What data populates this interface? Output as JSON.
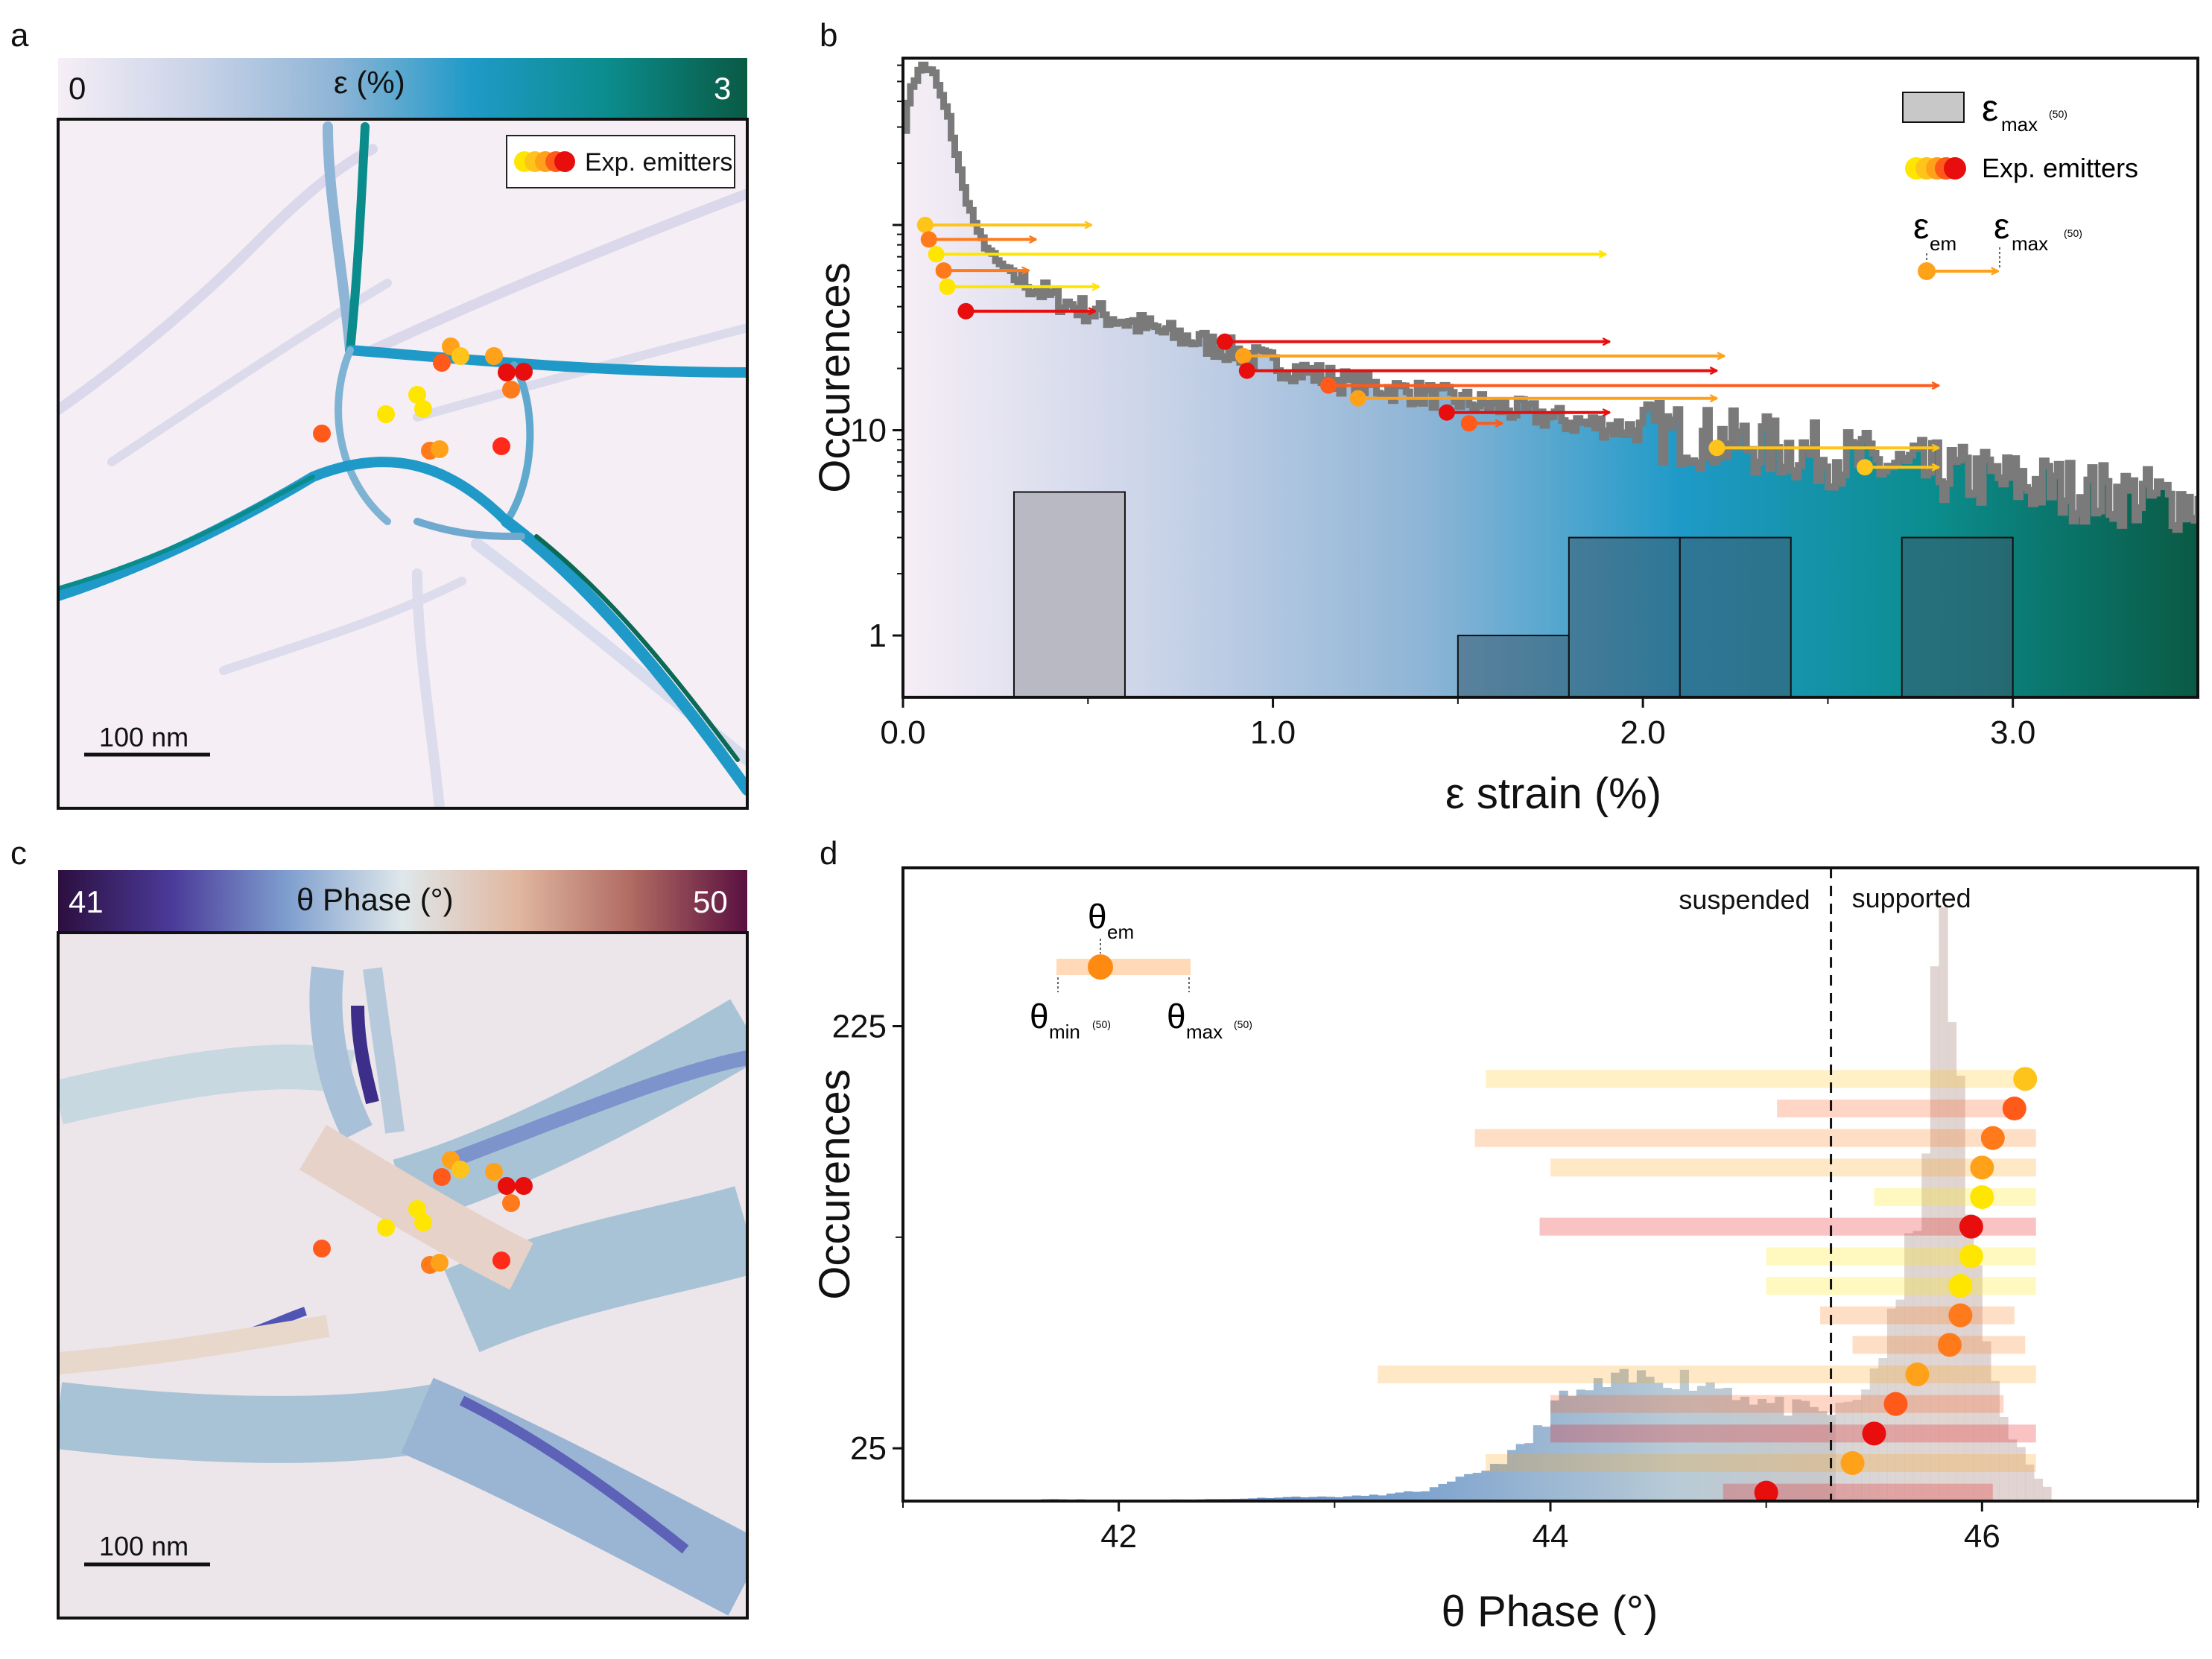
{
  "panels": {
    "a": {
      "label": "a",
      "colorbar": {
        "min": "0",
        "max": "3",
        "title": "ε  (%)",
        "colors": [
          "#f6eef6",
          "#c9d3e8",
          "#8fb5d6",
          "#1f9ac8",
          "#0b8c8c",
          "#0a5a44"
        ]
      },
      "legend": "Exp. emitters",
      "scalebar": "100 nm"
    },
    "c": {
      "label": "c",
      "colorbar": {
        "min": "41",
        "max": "50",
        "title": "θ Phase (°)",
        "colors": [
          "#2c0f3f",
          "#4b3b9a",
          "#7f9fcf",
          "#dfe7ea",
          "#e0b7a0",
          "#b06a62",
          "#5a1040"
        ]
      },
      "scalebar": "100 nm"
    }
  },
  "emitter_colors": [
    "#ffe600",
    "#ffc41a",
    "#ffa21a",
    "#ff7a1a",
    "#ff5a1a",
    "#ff2a1a",
    "#e80e0e"
  ],
  "chart_data": [
    {
      "panel": "b",
      "label": "b",
      "type": "bar",
      "title": "",
      "xlabel": "ε strain (%)",
      "ylabel": "Occurences",
      "xlim": [
        0,
        3.5
      ],
      "yscale": "log",
      "ylim": [
        0.5,
        650
      ],
      "xticks": [
        "0.0",
        "1.0",
        "2.0",
        "3.0"
      ],
      "xtick_values": [
        0,
        1,
        2,
        3
      ],
      "yticks": [
        "1",
        "10"
      ],
      "ytick_values": [
        1,
        10
      ],
      "legend": {
        "hist": "ε",
        "hist_sub": "max",
        "hist_sup": "(50)",
        "emitters": "Exp. emitters",
        "arrow_start": "ε",
        "arrow_start_sub": "em",
        "arrow_end": "ε",
        "arrow_end_sub": "max",
        "arrow_end_sup": "(50)"
      },
      "hist_bars": [
        {
          "x0": 0.3,
          "x1": 0.6,
          "count": 5
        },
        {
          "x0": 1.5,
          "x1": 1.8,
          "count": 1
        },
        {
          "x0": 1.8,
          "x1": 2.1,
          "count": 3
        },
        {
          "x0": 2.1,
          "x1": 2.4,
          "count": 3
        },
        {
          "x0": 2.7,
          "x1": 3.0,
          "count": 3
        }
      ],
      "distribution": [
        [
          0.0,
          300
        ],
        [
          0.02,
          480
        ],
        [
          0.05,
          600
        ],
        [
          0.08,
          540
        ],
        [
          0.12,
          330
        ],
        [
          0.16,
          150
        ],
        [
          0.2,
          90
        ],
        [
          0.25,
          66
        ],
        [
          0.3,
          56
        ],
        [
          0.4,
          44
        ],
        [
          0.5,
          38
        ],
        [
          0.6,
          34
        ],
        [
          0.7,
          30
        ],
        [
          0.8,
          27
        ],
        [
          0.9,
          24
        ],
        [
          1.0,
          21
        ],
        [
          1.1,
          19
        ],
        [
          1.2,
          17
        ],
        [
          1.3,
          16
        ],
        [
          1.4,
          15
        ],
        [
          1.5,
          14
        ],
        [
          1.6,
          13
        ],
        [
          1.7,
          12
        ],
        [
          1.8,
          11
        ],
        [
          1.9,
          10.5
        ],
        [
          2.0,
          10
        ],
        [
          2.1,
          9.5
        ],
        [
          2.2,
          9
        ],
        [
          2.3,
          8.5
        ],
        [
          2.4,
          8
        ],
        [
          2.5,
          7.5
        ],
        [
          2.6,
          7
        ],
        [
          2.7,
          6.5
        ],
        [
          2.8,
          6.2
        ],
        [
          2.9,
          5.9
        ],
        [
          3.0,
          5.6
        ],
        [
          3.1,
          5.3
        ],
        [
          3.2,
          5.0
        ],
        [
          3.3,
          4.8
        ],
        [
          3.4,
          4.6
        ],
        [
          3.5,
          4.4
        ]
      ],
      "arrows": [
        {
          "start": 0.06,
          "end": 0.51,
          "y": 100,
          "color": "#ffc41a"
        },
        {
          "start": 0.07,
          "end": 0.36,
          "y": 85,
          "color": "#ff7a1a"
        },
        {
          "start": 0.09,
          "end": 1.9,
          "y": 72,
          "color": "#ffe600"
        },
        {
          "start": 0.11,
          "end": 0.34,
          "y": 60,
          "color": "#ff7a1a"
        },
        {
          "start": 0.12,
          "end": 0.53,
          "y": 50,
          "color": "#ffe600"
        },
        {
          "start": 0.17,
          "end": 0.52,
          "y": 38,
          "color": "#e80e0e"
        },
        {
          "start": 0.87,
          "end": 1.91,
          "y": 27,
          "color": "#e80e0e"
        },
        {
          "start": 0.92,
          "end": 2.22,
          "y": 23,
          "color": "#ffa21a"
        },
        {
          "start": 0.93,
          "end": 2.2,
          "y": 19.5,
          "color": "#e80e0e"
        },
        {
          "start": 1.15,
          "end": 2.8,
          "y": 16.5,
          "color": "#ff5a1a"
        },
        {
          "start": 1.23,
          "end": 2.2,
          "y": 14.3,
          "color": "#ffa21a"
        },
        {
          "start": 1.47,
          "end": 1.91,
          "y": 12.2,
          "color": "#e80e0e"
        },
        {
          "start": 1.53,
          "end": 1.62,
          "y": 10.8,
          "color": "#ff5a1a"
        },
        {
          "start": 2.2,
          "end": 2.8,
          "y": 8.2,
          "color": "#ffc41a"
        },
        {
          "start": 2.6,
          "end": 2.8,
          "y": 6.6,
          "color": "#ffc41a"
        }
      ]
    },
    {
      "panel": "d",
      "label": "d",
      "type": "bar",
      "title": "",
      "xlabel": "θ Phase (°)",
      "ylabel": "Occurences",
      "xlim": [
        41,
        47
      ],
      "ylim": [
        0,
        300
      ],
      "xticks": [
        "42",
        "44",
        "46"
      ],
      "xtick_values": [
        42,
        44,
        46
      ],
      "yticks": [
        "25",
        "225"
      ],
      "ytick_values": [
        25,
        225
      ],
      "divider": 45.3,
      "region_left": "suspended",
      "region_right": "supported",
      "legend": {
        "center": "θ",
        "center_sub": "em",
        "min": "θ",
        "min_sub": "min",
        "min_sup": "(50)",
        "max": "θ",
        "max_sub": "max",
        "max_sup": "(50)"
      },
      "histogram": [
        [
          41.6,
          1
        ],
        [
          42.0,
          0.5
        ],
        [
          42.5,
          1
        ],
        [
          42.8,
          2
        ],
        [
          43.0,
          2
        ],
        [
          43.2,
          3
        ],
        [
          43.4,
          5
        ],
        [
          43.5,
          8
        ],
        [
          43.6,
          12
        ],
        [
          43.7,
          16
        ],
        [
          43.8,
          22
        ],
        [
          43.9,
          30
        ],
        [
          44.0,
          46
        ],
        [
          44.1,
          50
        ],
        [
          44.2,
          54
        ],
        [
          44.3,
          56
        ],
        [
          44.4,
          58
        ],
        [
          44.5,
          60
        ],
        [
          44.6,
          58
        ],
        [
          44.7,
          56
        ],
        [
          44.8,
          54
        ],
        [
          44.9,
          50
        ],
        [
          45.0,
          46
        ],
        [
          45.1,
          44
        ],
        [
          45.2,
          42
        ],
        [
          45.3,
          42
        ],
        [
          45.4,
          48
        ],
        [
          45.5,
          66
        ],
        [
          45.6,
          94
        ],
        [
          45.7,
          150
        ],
        [
          45.75,
          220
        ],
        [
          45.8,
          270
        ],
        [
          45.85,
          230
        ],
        [
          45.9,
          160
        ],
        [
          45.95,
          110
        ],
        [
          46.0,
          76
        ],
        [
          46.05,
          52
        ],
        [
          46.1,
          36
        ],
        [
          46.2,
          16
        ],
        [
          46.3,
          4
        ]
      ],
      "emitters": [
        {
          "em": 46.2,
          "min": 43.7,
          "max": 46.2,
          "y": 200,
          "color": "#ffc41a"
        },
        {
          "em": 46.15,
          "min": 45.05,
          "max": 46.15,
          "y": 186,
          "color": "#ff5a1a"
        },
        {
          "em": 46.05,
          "min": 43.65,
          "max": 46.25,
          "y": 172,
          "color": "#ff7a1a"
        },
        {
          "em": 46.0,
          "min": 44.0,
          "max": 46.25,
          "y": 158,
          "color": "#ffa21a"
        },
        {
          "em": 46.0,
          "min": 45.5,
          "max": 46.25,
          "y": 144,
          "color": "#ffe600"
        },
        {
          "em": 45.95,
          "min": 43.95,
          "max": 46.25,
          "y": 130,
          "color": "#e80e0e"
        },
        {
          "em": 45.95,
          "min": 45.0,
          "max": 46.25,
          "y": 116,
          "color": "#ffe600"
        },
        {
          "em": 45.9,
          "min": 45.0,
          "max": 46.25,
          "y": 102,
          "color": "#ffe600"
        },
        {
          "em": 45.9,
          "min": 45.25,
          "max": 46.15,
          "y": 88,
          "color": "#ff7a1a"
        },
        {
          "em": 45.85,
          "min": 45.4,
          "max": 46.2,
          "y": 74,
          "color": "#ff7a1a"
        },
        {
          "em": 45.7,
          "min": 43.2,
          "max": 46.25,
          "y": 60,
          "color": "#ffa21a"
        },
        {
          "em": 45.6,
          "min": 44.0,
          "max": 46.1,
          "y": 46,
          "color": "#ff5a1a"
        },
        {
          "em": 45.5,
          "min": 44.0,
          "max": 46.25,
          "y": 32,
          "color": "#e80e0e"
        },
        {
          "em": 45.4,
          "min": 43.7,
          "max": 46.25,
          "y": 18,
          "color": "#ffa21a"
        },
        {
          "em": 45.0,
          "min": 44.8,
          "max": 46.05,
          "y": 4,
          "color": "#e80e0e"
        }
      ]
    }
  ]
}
